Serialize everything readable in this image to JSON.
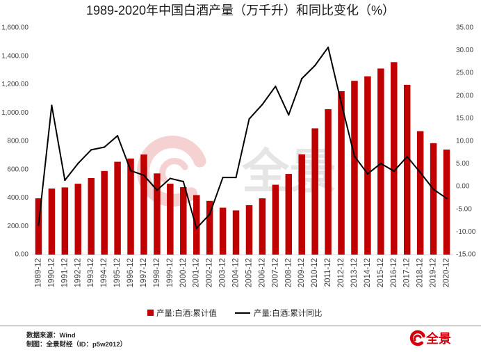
{
  "chart_data": {
    "type": "bar",
    "title": "1989-2020年中国白酒产量（万千升）和同比变化（%）",
    "categories": [
      "1989-12",
      "1990-12",
      "1991-12",
      "1992-12",
      "1993-12",
      "1994-12",
      "1995-12",
      "1996-12",
      "1997-12",
      "1998-12",
      "1999-12",
      "2000-12",
      "2001-12",
      "2002-12",
      "2003-12",
      "2004-12",
      "2005-12",
      "2006-12",
      "2007-12",
      "2008-12",
      "2009-12",
      "2010-12",
      "2011-12",
      "2012-12",
      "2013-12",
      "2014-12",
      "2015-12",
      "2016-12",
      "2017-12",
      "2018-12",
      "2019-12",
      "2020-12"
    ],
    "series": [
      {
        "name": "产量:白酒:累计值",
        "type": "bar",
        "axis": "left",
        "color": "#C00000",
        "values": [
          397,
          466,
          474,
          500,
          540,
          590,
          655,
          678,
          706,
          573,
          500,
          476,
          420,
          379,
          331,
          312,
          349,
          397,
          493,
          569,
          707,
          891,
          1026,
          1153,
          1226,
          1258,
          1313,
          1358,
          1198,
          871,
          786,
          741
        ]
      },
      {
        "name": "产量:白酒:累计同比",
        "type": "line",
        "axis": "right",
        "color": "#000000",
        "values": [
          -8.5,
          17.9,
          1.4,
          5.1,
          8.1,
          8.7,
          11.2,
          3.5,
          2.5,
          -0.8,
          1.8,
          1.1,
          -9.2,
          -6.1,
          2.0,
          2.0,
          14.9,
          18.1,
          22.1,
          15.8,
          23.8,
          26.7,
          30.7,
          18.4,
          6.7,
          2.8,
          5.1,
          3.4,
          6.6,
          3.1,
          -0.6,
          -2.6
        ]
      }
    ],
    "y_left": {
      "range": [
        0,
        1600
      ],
      "ticks": [
        {
          "value": 0,
          "label": "0.00"
        },
        {
          "value": 200,
          "label": "200.00"
        },
        {
          "value": 400,
          "label": "400.00"
        },
        {
          "value": 600,
          "label": "600.00"
        },
        {
          "value": 800,
          "label": "800.00"
        },
        {
          "value": 1000,
          "label": "1,000.00"
        },
        {
          "value": 1200,
          "label": "1,200.00"
        },
        {
          "value": 1400,
          "label": "1,400.00"
        },
        {
          "value": 1600,
          "label": "1,600.00"
        }
      ]
    },
    "y_right": {
      "range": [
        -15,
        35
      ],
      "ticks": [
        {
          "value": -15,
          "label": "-15.00"
        },
        {
          "value": -10,
          "label": "-10.00"
        },
        {
          "value": -5,
          "label": "-5.00"
        },
        {
          "value": 0,
          "label": "0.00"
        },
        {
          "value": 5,
          "label": "5.00"
        },
        {
          "value": 10,
          "label": "10.00"
        },
        {
          "value": 15,
          "label": "15.00"
        },
        {
          "value": 20,
          "label": "20.00"
        },
        {
          "value": 25,
          "label": "25.00"
        },
        {
          "value": 30,
          "label": "30.00"
        },
        {
          "value": 35,
          "label": "35.00"
        }
      ]
    },
    "grid": false,
    "legend_position": "bottom"
  },
  "watermark": {
    "text": "全景",
    "icon": "swoosh-logo-icon",
    "color": "#F0B4B4"
  },
  "footer": {
    "source": "数据来源：Wind",
    "credit": "制图：全景财经（ID：p5w2012）"
  },
  "logo": {
    "text": "全景",
    "icon": "swoosh-logo-icon",
    "color": "#D7000F"
  }
}
